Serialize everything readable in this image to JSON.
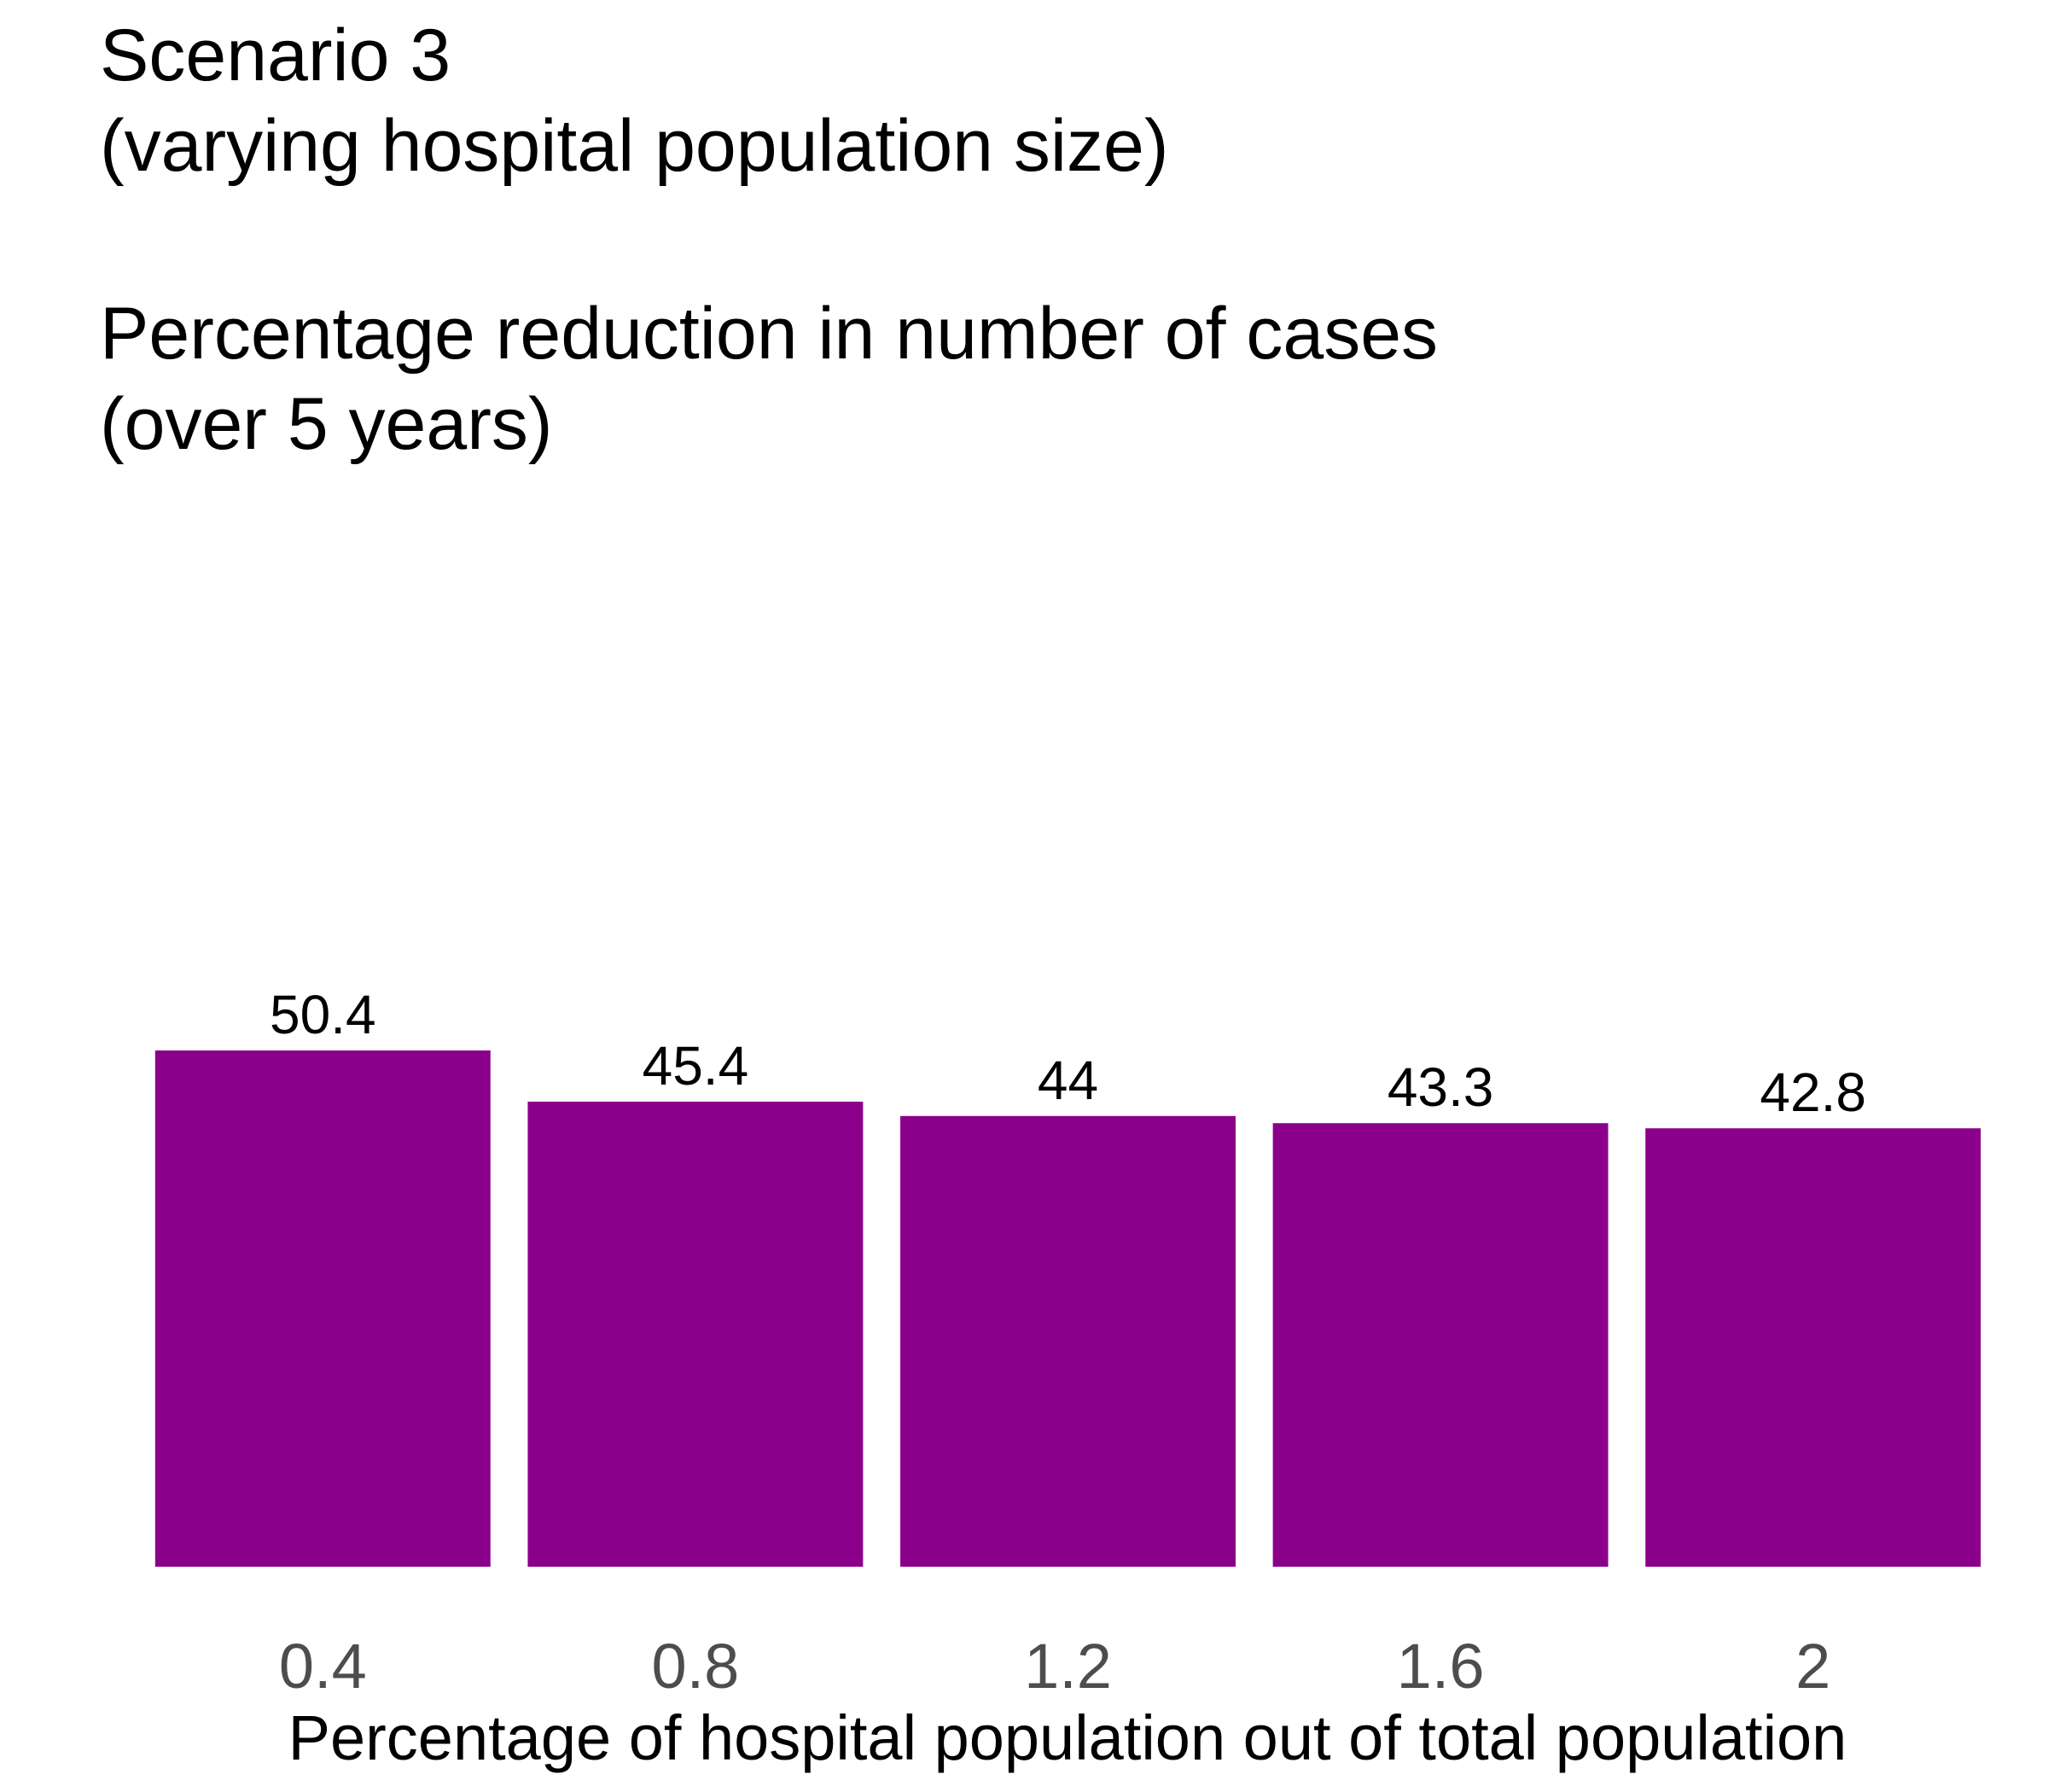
{
  "chart_data": {
    "type": "bar",
    "title": [
      "Scenario 3",
      "(varying hospital population size)",
      "",
      "Percentage reduction in number of cases",
      "(over 5 years)"
    ],
    "categories": [
      "0.4",
      "0.8",
      "1.2",
      "1.6",
      "2"
    ],
    "values": [
      50.4,
      45.4,
      44,
      43.3,
      42.8
    ],
    "data_labels": [
      "50.4",
      "45.4",
      "44",
      "43.3",
      "42.8"
    ],
    "xlabel": "Percentage of hospital population out of total population",
    "ylabel": "",
    "ylim": [
      0,
      50.4
    ],
    "grid": false,
    "legend": "none",
    "bar_color": "#8B008B"
  }
}
